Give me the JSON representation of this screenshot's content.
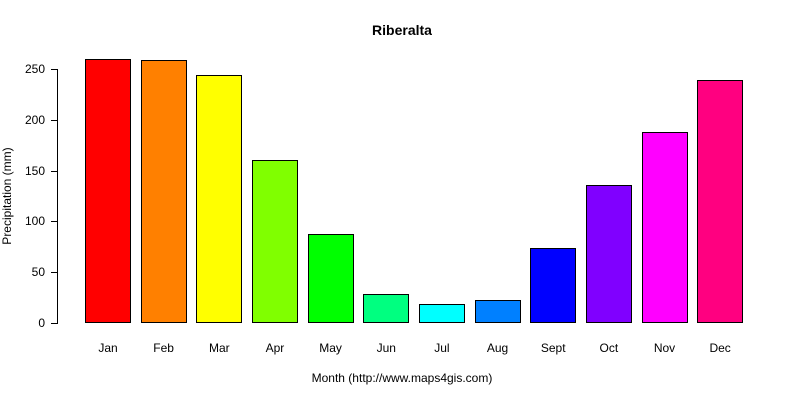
{
  "chart_data": {
    "type": "bar",
    "title": "Riberalta",
    "xlabel": "Month (http://www.maps4gis.com)",
    "ylabel": "Precipitation (mm)",
    "categories": [
      "Jan",
      "Feb",
      "Mar",
      "Apr",
      "May",
      "Jun",
      "Jul",
      "Aug",
      "Sept",
      "Oct",
      "Nov",
      "Dec"
    ],
    "values": [
      260,
      259,
      244,
      160,
      88,
      29,
      19,
      23,
      74,
      136,
      188,
      239
    ],
    "bar_colors": [
      "#FF0000",
      "#FF8000",
      "#FFFF00",
      "#80FF00",
      "#00FF00",
      "#00FF80",
      "#00FFFF",
      "#0080FF",
      "#0000FF",
      "#8000FF",
      "#FF00FF",
      "#FF0080"
    ],
    "bar_border_color": "#000000",
    "yticks": [
      0,
      50,
      100,
      150,
      200,
      250
    ],
    "ylim": [
      0,
      250
    ],
    "grid": false,
    "legend": "none",
    "background_color": "#FFFFFF",
    "axis_color": "#000000"
  }
}
